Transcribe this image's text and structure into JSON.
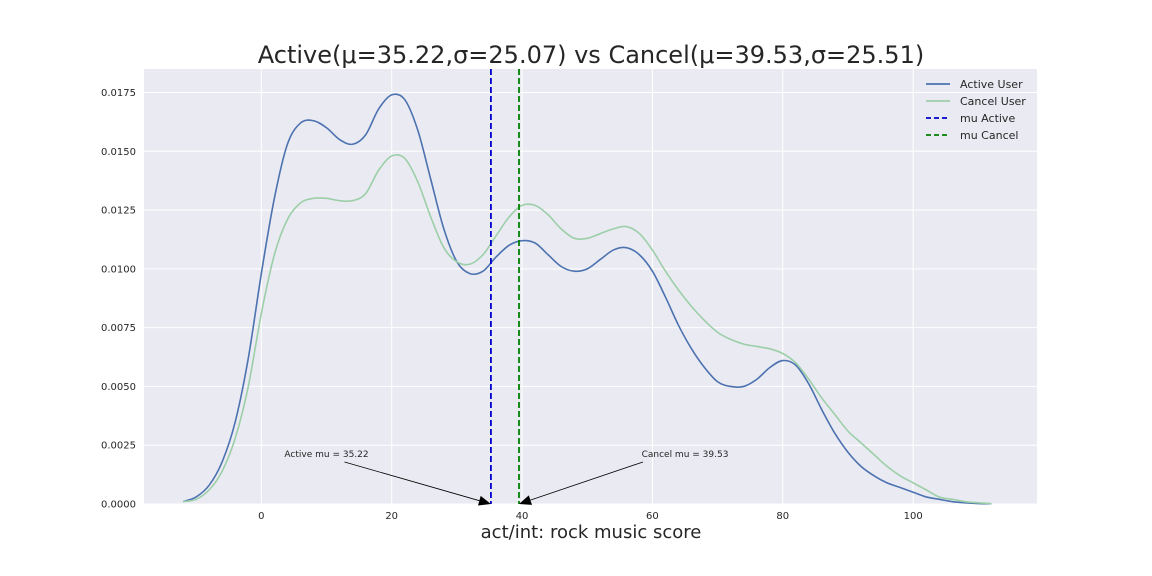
{
  "chart_data": {
    "type": "line",
    "title": "Active(μ=35.22,σ=25.07) vs Cancel(μ=39.53,σ=25.51)",
    "xlabel": "act/int: rock music score",
    "ylabel": "",
    "xlim": [
      -18,
      119
    ],
    "ylim": [
      0,
      0.0185
    ],
    "xticks": [
      0,
      20,
      40,
      60,
      80,
      100
    ],
    "yticks": [
      0.0,
      0.0025,
      0.005,
      0.0075,
      0.01,
      0.0125,
      0.015,
      0.0175
    ],
    "ytick_labels": [
      "0.0000",
      "0.0025",
      "0.0050",
      "0.0075",
      "0.0100",
      "0.0125",
      "0.0150",
      "0.0175"
    ],
    "grid": true,
    "legend_position": "top-right",
    "series": [
      {
        "name": "Active User",
        "color": "#4c72b0",
        "points": [
          [
            -12,
            0.0001
          ],
          [
            -10,
            0.0003
          ],
          [
            -8,
            0.0008
          ],
          [
            -6,
            0.0018
          ],
          [
            -4,
            0.0035
          ],
          [
            -2,
            0.0062
          ],
          [
            0,
            0.0098
          ],
          [
            2,
            0.013
          ],
          [
            4,
            0.0153
          ],
          [
            6,
            0.0162
          ],
          [
            8,
            0.0163
          ],
          [
            10,
            0.016
          ],
          [
            12,
            0.0155
          ],
          [
            14,
            0.0153
          ],
          [
            16,
            0.0157
          ],
          [
            18,
            0.0168
          ],
          [
            20,
            0.0174
          ],
          [
            22,
            0.0172
          ],
          [
            24,
            0.0159
          ],
          [
            26,
            0.0138
          ],
          [
            28,
            0.0117
          ],
          [
            30,
            0.0103
          ],
          [
            32,
            0.0098
          ],
          [
            34,
            0.0099
          ],
          [
            36,
            0.0105
          ],
          [
            38,
            0.011
          ],
          [
            40,
            0.0112
          ],
          [
            42,
            0.0111
          ],
          [
            44,
            0.0106
          ],
          [
            46,
            0.0101
          ],
          [
            48,
            0.0099
          ],
          [
            50,
            0.01
          ],
          [
            52,
            0.0104
          ],
          [
            54,
            0.0108
          ],
          [
            56,
            0.0109
          ],
          [
            58,
            0.0106
          ],
          [
            60,
            0.0099
          ],
          [
            62,
            0.0088
          ],
          [
            64,
            0.0076
          ],
          [
            66,
            0.0066
          ],
          [
            68,
            0.0058
          ],
          [
            70,
            0.0052
          ],
          [
            72,
            0.005
          ],
          [
            74,
            0.005
          ],
          [
            76,
            0.0053
          ],
          [
            78,
            0.0058
          ],
          [
            80,
            0.0061
          ],
          [
            82,
            0.0059
          ],
          [
            84,
            0.0051
          ],
          [
            86,
            0.004
          ],
          [
            88,
            0.003
          ],
          [
            90,
            0.0022
          ],
          [
            92,
            0.0016
          ],
          [
            94,
            0.0012
          ],
          [
            96,
            0.0009
          ],
          [
            98,
            0.0007
          ],
          [
            100,
            0.0005
          ],
          [
            102,
            0.0003
          ],
          [
            104,
            0.0002
          ],
          [
            106,
            0.0001
          ],
          [
            108,
            5e-05
          ],
          [
            110,
            2e-05
          ],
          [
            112,
            1e-05
          ]
        ]
      },
      {
        "name": "Cancel User",
        "color": "#9ccfa8",
        "points": [
          [
            -12,
            0.0001
          ],
          [
            -10,
            0.0002
          ],
          [
            -8,
            0.0006
          ],
          [
            -6,
            0.0014
          ],
          [
            -4,
            0.0028
          ],
          [
            -2,
            0.005
          ],
          [
            0,
            0.0081
          ],
          [
            2,
            0.0106
          ],
          [
            4,
            0.0121
          ],
          [
            6,
            0.0128
          ],
          [
            8,
            0.013
          ],
          [
            10,
            0.013
          ],
          [
            12,
            0.0129
          ],
          [
            14,
            0.0129
          ],
          [
            16,
            0.0132
          ],
          [
            18,
            0.0142
          ],
          [
            20,
            0.0148
          ],
          [
            22,
            0.0147
          ],
          [
            24,
            0.0137
          ],
          [
            26,
            0.0122
          ],
          [
            28,
            0.0109
          ],
          [
            30,
            0.0103
          ],
          [
            32,
            0.0102
          ],
          [
            34,
            0.0106
          ],
          [
            36,
            0.0114
          ],
          [
            38,
            0.0122
          ],
          [
            40,
            0.0127
          ],
          [
            42,
            0.0127
          ],
          [
            44,
            0.0123
          ],
          [
            46,
            0.0117
          ],
          [
            48,
            0.0113
          ],
          [
            50,
            0.0113
          ],
          [
            52,
            0.0115
          ],
          [
            54,
            0.0117
          ],
          [
            56,
            0.0118
          ],
          [
            58,
            0.0115
          ],
          [
            60,
            0.0108
          ],
          [
            62,
            0.0099
          ],
          [
            64,
            0.0091
          ],
          [
            66,
            0.0084
          ],
          [
            68,
            0.0078
          ],
          [
            70,
            0.0073
          ],
          [
            72,
            0.007
          ],
          [
            74,
            0.0068
          ],
          [
            76,
            0.0067
          ],
          [
            78,
            0.0066
          ],
          [
            80,
            0.0064
          ],
          [
            82,
            0.006
          ],
          [
            84,
            0.0053
          ],
          [
            86,
            0.0045
          ],
          [
            88,
            0.0038
          ],
          [
            90,
            0.0031
          ],
          [
            92,
            0.0026
          ],
          [
            94,
            0.0021
          ],
          [
            96,
            0.0016
          ],
          [
            98,
            0.0012
          ],
          [
            100,
            0.0009
          ],
          [
            102,
            0.0006
          ],
          [
            104,
            0.0003
          ],
          [
            106,
            0.0002
          ],
          [
            108,
            0.0001
          ],
          [
            110,
            5e-05
          ],
          [
            112,
            2e-05
          ]
        ]
      }
    ],
    "vlines": [
      {
        "name": "mu Active",
        "x": 35.22,
        "color": "#0000cc",
        "style": "dashed"
      },
      {
        "name": "mu Cancel",
        "x": 39.53,
        "color": "#008000",
        "style": "dashed"
      }
    ],
    "annotations": [
      {
        "text": "Active mu = 35.22",
        "target": [
          35.22,
          0.0
        ],
        "text_at": [
          10,
          0.002
        ]
      },
      {
        "text": "Cancel mu = 39.53",
        "target": [
          39.53,
          0.0
        ],
        "text_at": [
          65,
          0.002
        ]
      }
    ],
    "legend": [
      "Active User",
      "Cancel User",
      "mu Active",
      "mu Cancel"
    ]
  }
}
